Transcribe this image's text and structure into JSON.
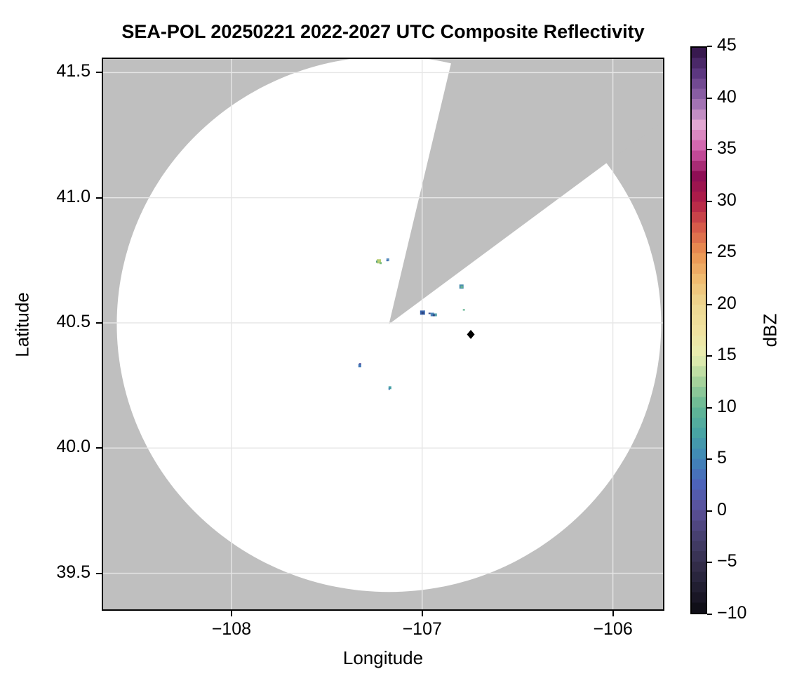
{
  "title": "SEA-POL 20250221 2022-2027 UTC Composite Reflectivity",
  "axes": {
    "xlabel": "Longitude",
    "ylabel": "Latitude",
    "x_ticks": [
      {
        "value": -108,
        "label": "−108"
      },
      {
        "value": -107,
        "label": "−107"
      },
      {
        "value": -106,
        "label": "−106"
      }
    ],
    "y_ticks": [
      {
        "value": 41.5,
        "label": "41.5"
      },
      {
        "value": 41.0,
        "label": "41.0"
      },
      {
        "value": 40.5,
        "label": "40.5"
      },
      {
        "value": 40.0,
        "label": "40.0"
      },
      {
        "value": 39.5,
        "label": "39.5"
      }
    ]
  },
  "colorbar": {
    "label": "dBZ",
    "min": -10,
    "max": 45,
    "band_step": 1,
    "ticks": [
      {
        "value": 45,
        "label": "45"
      },
      {
        "value": 40,
        "label": "40"
      },
      {
        "value": 35,
        "label": "35"
      },
      {
        "value": 30,
        "label": "30"
      },
      {
        "value": 25,
        "label": "25"
      },
      {
        "value": 20,
        "label": "20"
      },
      {
        "value": 15,
        "label": "15"
      },
      {
        "value": 10,
        "label": "10"
      },
      {
        "value": 5,
        "label": "5"
      },
      {
        "value": 0,
        "label": "0"
      },
      {
        "value": -5,
        "label": "−5"
      },
      {
        "value": -10,
        "label": "−10"
      }
    ],
    "anchors": [
      {
        "v": -10,
        "c": "#0c0b12"
      },
      {
        "v": -7.5,
        "c": "#211e31"
      },
      {
        "v": -5,
        "c": "#36304e"
      },
      {
        "v": -2.5,
        "c": "#474070"
      },
      {
        "v": 0,
        "c": "#5b5098"
      },
      {
        "v": 2.5,
        "c": "#4d63ba"
      },
      {
        "v": 5,
        "c": "#3f86b8"
      },
      {
        "v": 7.5,
        "c": "#48a4a4"
      },
      {
        "v": 10,
        "c": "#64b794"
      },
      {
        "v": 12.5,
        "c": "#a5d29b"
      },
      {
        "v": 15,
        "c": "#e9efb2"
      },
      {
        "v": 17.5,
        "c": "#f0e2a0"
      },
      {
        "v": 20,
        "c": "#edd892"
      },
      {
        "v": 22.5,
        "c": "#f0bb70"
      },
      {
        "v": 25,
        "c": "#eb9351"
      },
      {
        "v": 27.5,
        "c": "#d65b4a"
      },
      {
        "v": 30,
        "c": "#b22047"
      },
      {
        "v": 32.5,
        "c": "#8e0e55"
      },
      {
        "v": 35,
        "c": "#ce58a6"
      },
      {
        "v": 37.5,
        "c": "#e2a8d2"
      },
      {
        "v": 40,
        "c": "#9366ac"
      },
      {
        "v": 42.5,
        "c": "#5c3780"
      },
      {
        "v": 45,
        "c": "#2f1143"
      }
    ]
  },
  "style": {
    "outside_fill": "#bfbfbf",
    "scan_area_fill": "#ffffff",
    "grid_color": "#e6e6e6",
    "frame_color": "#000000",
    "marker_color": "#000000"
  },
  "chart_data": {
    "type": "heatmap",
    "title": "SEA-POL 20250221 2022-2027 UTC Composite Reflectivity",
    "xlabel": "Longitude",
    "ylabel": "Latitude",
    "xlim": [
      -108.68,
      -105.73
    ],
    "ylim": [
      39.35,
      41.56
    ],
    "grid": true,
    "colorbar_label": "dBZ",
    "colorbar_range": [
      -10,
      45
    ],
    "radar": {
      "name": "SEA-POL",
      "lon": -107.174,
      "lat": 40.495,
      "coverage_radius_deg_lon": 1.427,
      "coverage_radius_deg_lat": 1.07
    },
    "blocked_sector_azimuth_deg_from_north": [
      13.4,
      53.5
    ],
    "echoes": [
      {
        "lon": -107.227,
        "lat": 40.746,
        "dbz": 15,
        "px": [
          [
            -3,
            -3,
            6,
            6,
            "#b9cf74"
          ],
          [
            -4,
            -1,
            2,
            3,
            "#569f7f"
          ],
          [
            1,
            1,
            3,
            3,
            "#7dbd7e"
          ]
        ]
      },
      {
        "lon": -107.18,
        "lat": 40.752,
        "dbz": 5,
        "px": [
          [
            -2,
            -2,
            4,
            4,
            "#5b8fc0"
          ],
          [
            -2,
            0,
            2,
            2,
            "#3f6ab1"
          ]
        ]
      },
      {
        "lon": -106.794,
        "lat": 40.645,
        "dbz": 10,
        "px": [
          [
            -3,
            -3,
            6,
            6,
            "#4b8fae"
          ],
          [
            -1,
            -1,
            3,
            3,
            "#67b68e"
          ]
        ]
      },
      {
        "lon": -106.996,
        "lat": 40.541,
        "dbz": 3,
        "px": [
          [
            -4,
            -3,
            7,
            6,
            "#3a64ab"
          ],
          [
            -2,
            -1,
            3,
            3,
            "#2c4380"
          ],
          [
            1,
            -3,
            2,
            2,
            "#4f7ec0"
          ]
        ]
      },
      {
        "lon": -106.963,
        "lat": 40.538,
        "dbz": 1,
        "px": [
          [
            -1,
            -1,
            3,
            2,
            "#3d4f8e"
          ]
        ]
      },
      {
        "lon": -106.941,
        "lat": 40.535,
        "dbz": 5,
        "px": [
          [
            -4,
            -2,
            5,
            5,
            "#4b84bb"
          ],
          [
            0,
            -1,
            5,
            4,
            "#55a0ab"
          ],
          [
            -1,
            0,
            3,
            3,
            "#2f4a8a"
          ]
        ]
      },
      {
        "lon": -106.783,
        "lat": 40.552,
        "dbz": 10,
        "px": [
          [
            -1,
            -1,
            3,
            2,
            "#58b08b"
          ]
        ]
      },
      {
        "lon": -107.327,
        "lat": 40.331,
        "dbz": 4,
        "px": [
          [
            -2,
            -2,
            4,
            5,
            "#4179b8"
          ],
          [
            -1,
            -3,
            3,
            2,
            "#5b55a0"
          ]
        ]
      },
      {
        "lon": -107.169,
        "lat": 40.241,
        "dbz": 7,
        "px": [
          [
            -2,
            -2,
            4,
            4,
            "#46a0a5"
          ],
          [
            -2,
            1,
            2,
            2,
            "#3f7ab8"
          ]
        ]
      }
    ],
    "marker": {
      "lon": -106.745,
      "lat": 40.454,
      "symbol": "diamond",
      "color": "#000000"
    }
  }
}
